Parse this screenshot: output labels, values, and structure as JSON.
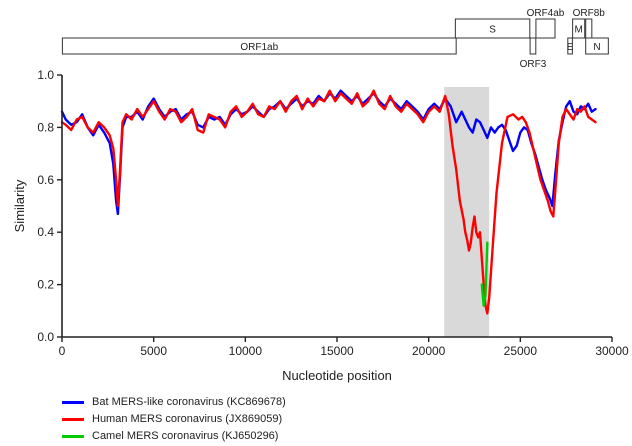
{
  "chart_data": {
    "type": "line",
    "title": "",
    "xlabel": "Nucleotide position",
    "ylabel": "Similarity",
    "xlim": [
      0,
      30000
    ],
    "ylim": [
      0.0,
      1.0
    ],
    "x_ticks": [
      {
        "value": 0,
        "label": "0"
      },
      {
        "value": 5000,
        "label": "5000"
      },
      {
        "value": 10000,
        "label": "10000"
      },
      {
        "value": 15000,
        "label": "15000"
      },
      {
        "value": 20000,
        "label": "20000"
      },
      {
        "value": 25000,
        "label": "25000"
      },
      {
        "value": 30000,
        "label": "30000"
      }
    ],
    "y_ticks": [
      {
        "value": 0.0,
        "label": "0.0"
      },
      {
        "value": 0.2,
        "label": "0.2"
      },
      {
        "value": 0.4,
        "label": "0.4"
      },
      {
        "value": 0.6,
        "label": "0.6"
      },
      {
        "value": 0.8,
        "label": "0.8"
      },
      {
        "value": 1.0,
        "label": "1.0"
      }
    ],
    "highlight_region": {
      "x_start": 20850,
      "x_end": 23300,
      "color": "#d9d9d9"
    },
    "genome_map": {
      "genes": [
        {
          "label": "ORF1ab",
          "start": 21,
          "end": 21500,
          "row": "main",
          "label_pos": "inside"
        },
        {
          "label": "S",
          "start": 21456,
          "end": 25517,
          "row": "upper",
          "label_pos": "inside"
        },
        {
          "label": "ORF3",
          "start": 25532,
          "end": 25844,
          "row": "main",
          "label_pos": "below"
        },
        {
          "label": "ORF4ab",
          "start": 25851,
          "end": 26891,
          "row": "upper",
          "label_pos": "above"
        },
        {
          "label": "E",
          "start": 27590,
          "end": 27838,
          "row": "main",
          "label_pos": "inside"
        },
        {
          "label": "M",
          "start": 27853,
          "end": 28512,
          "row": "upper",
          "label_pos": "inside"
        },
        {
          "label": "ORF8b",
          "start": 28566,
          "end": 28900,
          "row": "upper",
          "label_pos": "above"
        },
        {
          "label": "N",
          "start": 28566,
          "end": 29800,
          "row": "main",
          "label_pos": "inside"
        }
      ]
    },
    "legend": "bottom-left",
    "series": [
      {
        "name": "Bat MERS-like coronavirus (KC869678)",
        "color": "#0000ff",
        "x": [
          0,
          200,
          500,
          800,
          1100,
          1400,
          1700,
          2000,
          2300,
          2600,
          2800,
          2950,
          3050,
          3150,
          3300,
          3500,
          3800,
          4100,
          4400,
          4700,
          5000,
          5300,
          5600,
          5900,
          6200,
          6500,
          6800,
          7100,
          7400,
          7700,
          8000,
          8300,
          8600,
          8900,
          9200,
          9500,
          9800,
          10100,
          10400,
          10700,
          11000,
          11300,
          11600,
          11900,
          12200,
          12500,
          12800,
          13100,
          13400,
          13700,
          14000,
          14300,
          14600,
          14900,
          15200,
          15500,
          15800,
          16100,
          16400,
          16700,
          17000,
          17300,
          17600,
          17900,
          18200,
          18500,
          18800,
          19100,
          19400,
          19700,
          20000,
          20300,
          20600,
          20900,
          21200,
          21500,
          21800,
          22000,
          22200,
          22400,
          22600,
          22800,
          23000,
          23200,
          23400,
          23600,
          23800,
          24000,
          24200,
          24400,
          24600,
          24800,
          25000,
          25200,
          25400,
          25600,
          25800,
          26000,
          26200,
          26400,
          26600,
          26750,
          26900,
          27100,
          27300,
          27500,
          27700,
          27900,
          28100,
          28300,
          28500,
          28700,
          28900,
          29100
        ],
        "values": [
          0.86,
          0.83,
          0.81,
          0.82,
          0.85,
          0.8,
          0.77,
          0.81,
          0.78,
          0.74,
          0.66,
          0.52,
          0.47,
          0.6,
          0.8,
          0.84,
          0.84,
          0.86,
          0.83,
          0.88,
          0.91,
          0.87,
          0.84,
          0.86,
          0.87,
          0.83,
          0.85,
          0.86,
          0.81,
          0.8,
          0.84,
          0.83,
          0.84,
          0.81,
          0.85,
          0.87,
          0.85,
          0.86,
          0.88,
          0.86,
          0.84,
          0.87,
          0.88,
          0.9,
          0.87,
          0.89,
          0.91,
          0.88,
          0.9,
          0.89,
          0.92,
          0.9,
          0.93,
          0.91,
          0.94,
          0.92,
          0.9,
          0.92,
          0.89,
          0.91,
          0.93,
          0.9,
          0.88,
          0.91,
          0.89,
          0.87,
          0.9,
          0.88,
          0.86,
          0.83,
          0.87,
          0.89,
          0.87,
          0.91,
          0.88,
          0.82,
          0.86,
          0.83,
          0.8,
          0.78,
          0.83,
          0.82,
          0.79,
          0.76,
          0.8,
          0.78,
          0.8,
          0.81,
          0.79,
          0.75,
          0.71,
          0.73,
          0.78,
          0.8,
          0.79,
          0.74,
          0.7,
          0.65,
          0.6,
          0.56,
          0.53,
          0.5,
          0.62,
          0.75,
          0.82,
          0.88,
          0.9,
          0.86,
          0.85,
          0.88,
          0.87,
          0.89,
          0.86,
          0.87
        ]
      },
      {
        "name": "Human MERS coronavirus (JX869059)",
        "color": "#ff0000",
        "x": [
          0,
          200,
          500,
          800,
          1100,
          1400,
          1700,
          2000,
          2300,
          2600,
          2800,
          2950,
          3050,
          3150,
          3300,
          3500,
          3800,
          4100,
          4400,
          4700,
          5000,
          5300,
          5600,
          5900,
          6200,
          6500,
          6800,
          7100,
          7400,
          7700,
          8000,
          8300,
          8600,
          8900,
          9200,
          9500,
          9800,
          10100,
          10400,
          10700,
          11000,
          11300,
          11600,
          11900,
          12200,
          12500,
          12800,
          13100,
          13400,
          13700,
          14000,
          14300,
          14600,
          14900,
          15200,
          15500,
          15800,
          16100,
          16400,
          16700,
          17000,
          17300,
          17600,
          17900,
          18200,
          18500,
          18800,
          19100,
          19400,
          19700,
          20000,
          20300,
          20600,
          20900,
          21100,
          21300,
          21500,
          21700,
          21900,
          22000,
          22100,
          22200,
          22300,
          22400,
          22500,
          22600,
          22700,
          22800,
          22900,
          23000,
          23100,
          23200,
          23300,
          23500,
          23700,
          24000,
          24300,
          24600,
          24900,
          25100,
          25300,
          25500,
          25700,
          25900,
          26100,
          26300,
          26500,
          26650,
          26800,
          26950,
          27100,
          27300,
          27500,
          27700,
          27900,
          28100,
          28300,
          28500,
          28700,
          28900,
          29100
        ],
        "values": [
          0.82,
          0.81,
          0.79,
          0.83,
          0.84,
          0.8,
          0.78,
          0.82,
          0.8,
          0.77,
          0.72,
          0.6,
          0.5,
          0.62,
          0.82,
          0.85,
          0.83,
          0.87,
          0.84,
          0.87,
          0.9,
          0.86,
          0.83,
          0.87,
          0.86,
          0.82,
          0.84,
          0.87,
          0.79,
          0.78,
          0.85,
          0.84,
          0.83,
          0.8,
          0.86,
          0.88,
          0.84,
          0.86,
          0.89,
          0.85,
          0.84,
          0.88,
          0.87,
          0.9,
          0.86,
          0.9,
          0.92,
          0.87,
          0.91,
          0.88,
          0.91,
          0.9,
          0.94,
          0.9,
          0.93,
          0.91,
          0.89,
          0.93,
          0.88,
          0.9,
          0.94,
          0.89,
          0.87,
          0.92,
          0.88,
          0.86,
          0.89,
          0.87,
          0.85,
          0.82,
          0.86,
          0.88,
          0.86,
          0.92,
          0.85,
          0.73,
          0.64,
          0.52,
          0.45,
          0.4,
          0.37,
          0.33,
          0.36,
          0.42,
          0.46,
          0.4,
          0.38,
          0.4,
          0.3,
          0.2,
          0.12,
          0.09,
          0.15,
          0.35,
          0.55,
          0.74,
          0.84,
          0.85,
          0.83,
          0.84,
          0.82,
          0.78,
          0.72,
          0.66,
          0.6,
          0.56,
          0.52,
          0.48,
          0.46,
          0.6,
          0.74,
          0.84,
          0.87,
          0.85,
          0.83,
          0.87,
          0.86,
          0.88,
          0.84,
          0.83,
          0.82
        ]
      },
      {
        "name": "Camel MERS coronavirus (KJ650296)",
        "color": "#00cc00",
        "x": [
          22900,
          23000,
          23100,
          23200
        ],
        "values": [
          0.2,
          0.12,
          0.16,
          0.36
        ]
      }
    ]
  }
}
